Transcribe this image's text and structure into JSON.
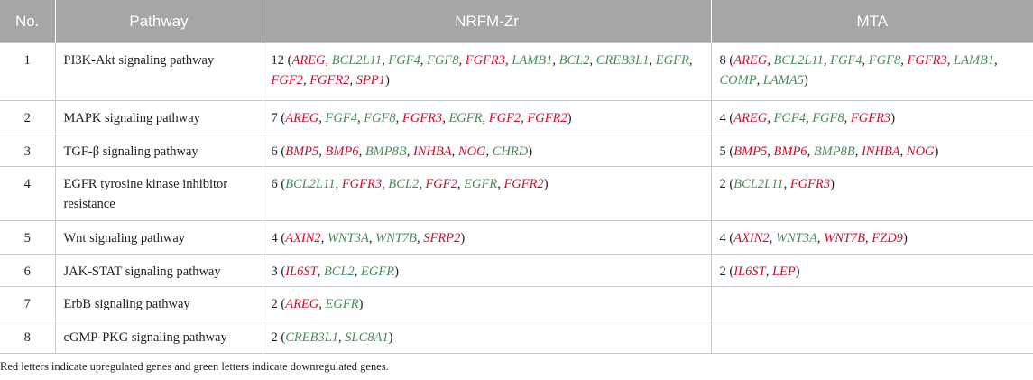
{
  "colors": {
    "header_bg": "#a6a6a6",
    "upregulated": "#c8102e",
    "downregulated": "#4a8a5a"
  },
  "columns": [
    "No.",
    "Pathway",
    "NRFM-Zr",
    "MTA"
  ],
  "rows": [
    {
      "no": "1",
      "pathway": "PI3K-Akt signaling pathway",
      "nrfm": {
        "count": "12",
        "genes": [
          {
            "s": "AREG",
            "d": "up"
          },
          {
            "s": "BCL2L11",
            "d": "down"
          },
          {
            "s": "FGF4",
            "d": "down"
          },
          {
            "s": "FGF8",
            "d": "down"
          },
          {
            "s": "FGFR3",
            "d": "up"
          },
          {
            "s": "LAMB1",
            "d": "down"
          },
          {
            "s": "BCL2",
            "d": "down"
          },
          {
            "s": "CREB3L1",
            "d": "down"
          },
          {
            "s": "EGFR",
            "d": "down"
          },
          {
            "s": "FGF2",
            "d": "up"
          },
          {
            "s": "FGFR2",
            "d": "up"
          },
          {
            "s": "SPP1",
            "d": "up"
          }
        ]
      },
      "mta": {
        "count": "8",
        "genes": [
          {
            "s": "AREG",
            "d": "up"
          },
          {
            "s": "BCL2L11",
            "d": "down"
          },
          {
            "s": "FGF4",
            "d": "down"
          },
          {
            "s": "FGF8",
            "d": "down"
          },
          {
            "s": "FGFR3",
            "d": "up"
          },
          {
            "s": "LAMB1",
            "d": "down"
          },
          {
            "s": "COMP",
            "d": "down"
          },
          {
            "s": "LAMA5",
            "d": "down"
          }
        ]
      }
    },
    {
      "no": "2",
      "pathway": "MAPK signaling pathway",
      "nrfm": {
        "count": "7",
        "genes": [
          {
            "s": "AREG",
            "d": "up"
          },
          {
            "s": "FGF4",
            "d": "down"
          },
          {
            "s": "FGF8",
            "d": "down"
          },
          {
            "s": "FGFR3",
            "d": "up"
          },
          {
            "s": "EGFR",
            "d": "down"
          },
          {
            "s": "FGF2",
            "d": "up"
          },
          {
            "s": "FGFR2",
            "d": "up"
          }
        ]
      },
      "mta": {
        "count": "4",
        "genes": [
          {
            "s": "AREG",
            "d": "up"
          },
          {
            "s": "FGF4",
            "d": "down"
          },
          {
            "s": "FGF8",
            "d": "down"
          },
          {
            "s": "FGFR3",
            "d": "up"
          }
        ]
      }
    },
    {
      "no": "3",
      "pathway": "TGF-β signaling pathway",
      "nrfm": {
        "count": "6",
        "genes": [
          {
            "s": "BMP5",
            "d": "up"
          },
          {
            "s": "BMP6",
            "d": "up"
          },
          {
            "s": "BMP8B",
            "d": "down"
          },
          {
            "s": "INHBA",
            "d": "up"
          },
          {
            "s": "NOG",
            "d": "up"
          },
          {
            "s": "CHRD",
            "d": "down"
          }
        ]
      },
      "mta": {
        "count": "5",
        "genes": [
          {
            "s": "BMP5",
            "d": "up"
          },
          {
            "s": "BMP6",
            "d": "up"
          },
          {
            "s": "BMP8B",
            "d": "down"
          },
          {
            "s": "INHBA",
            "d": "up"
          },
          {
            "s": "NOG",
            "d": "up"
          }
        ]
      }
    },
    {
      "no": "4",
      "pathway": "EGFR tyrosine kinase inhibitor resistance",
      "nrfm": {
        "count": "6",
        "genes": [
          {
            "s": "BCL2L11",
            "d": "down"
          },
          {
            "s": "FGFR3",
            "d": "up"
          },
          {
            "s": "BCL2",
            "d": "down"
          },
          {
            "s": "FGF2",
            "d": "up"
          },
          {
            "s": "EGFR",
            "d": "down"
          },
          {
            "s": "FGFR2",
            "d": "up"
          }
        ]
      },
      "mta": {
        "count": "2",
        "genes": [
          {
            "s": "BCL2L11",
            "d": "down"
          },
          {
            "s": "FGFR3",
            "d": "up"
          }
        ]
      }
    },
    {
      "no": "5",
      "pathway": "Wnt signaling pathway",
      "nrfm": {
        "count": "4",
        "genes": [
          {
            "s": "AXIN2",
            "d": "up"
          },
          {
            "s": "WNT3A",
            "d": "down"
          },
          {
            "s": "WNT7B",
            "d": "down"
          },
          {
            "s": "SFRP2",
            "d": "up"
          }
        ]
      },
      "mta": {
        "count": "4",
        "genes": [
          {
            "s": "AXIN2",
            "d": "up"
          },
          {
            "s": "WNT3A",
            "d": "down"
          },
          {
            "s": "WNT7B",
            "d": "up"
          },
          {
            "s": "FZD9",
            "d": "up"
          }
        ]
      }
    },
    {
      "no": "6",
      "pathway": "JAK-STAT signaling pathway",
      "nrfm": {
        "count": "3",
        "genes": [
          {
            "s": "IL6ST",
            "d": "up"
          },
          {
            "s": "BCL2",
            "d": "down"
          },
          {
            "s": "EGFR",
            "d": "down"
          }
        ]
      },
      "mta": {
        "count": "2",
        "genes": [
          {
            "s": "IL6ST",
            "d": "up"
          },
          {
            "s": "LEP",
            "d": "up"
          }
        ]
      }
    },
    {
      "no": "7",
      "pathway": "ErbB signaling pathway",
      "nrfm": {
        "count": "2",
        "genes": [
          {
            "s": "AREG",
            "d": "up"
          },
          {
            "s": "EGFR",
            "d": "down"
          }
        ]
      },
      "mta": null
    },
    {
      "no": "8",
      "pathway": "cGMP-PKG signaling pathway",
      "nrfm": {
        "count": "2",
        "genes": [
          {
            "s": "CREB3L1",
            "d": "down"
          },
          {
            "s": "SLC8A1",
            "d": "down"
          }
        ]
      },
      "mta": null
    }
  ],
  "footnote": "Red letters indicate upregulated genes and green letters indicate downregulated genes."
}
